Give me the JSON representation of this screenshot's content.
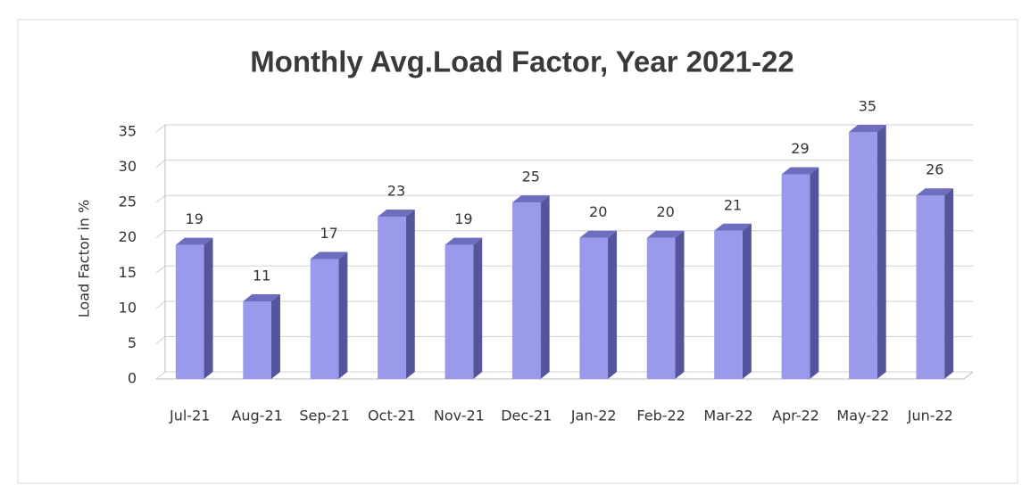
{
  "chart_data": {
    "type": "bar",
    "title": "Monthly Avg.Load Factor, Year 2021-22",
    "y_label": "Load  Factor in %",
    "categories": [
      "Jul-21",
      "Aug-21",
      "Sep-21",
      "Oct-21",
      "Nov-21",
      "Dec-21",
      "Jan-22",
      "Feb-22",
      "Mar-22",
      "Apr-22",
      "May-22",
      "Jun-22"
    ],
    "values": [
      19,
      11,
      17,
      23,
      19,
      25,
      20,
      20,
      21,
      29,
      35,
      26
    ],
    "color": "#9a9aec",
    "ylim": [
      0,
      35
    ],
    "yticks": [
      0,
      5,
      10,
      15,
      20,
      25,
      30,
      35
    ],
    "grid": true
  }
}
